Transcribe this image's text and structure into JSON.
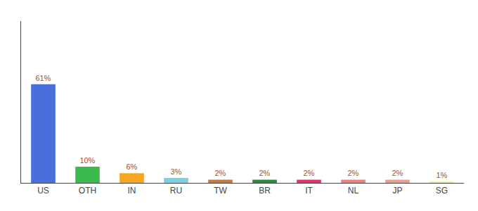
{
  "chart_data": {
    "type": "bar",
    "categories": [
      "US",
      "OTH",
      "IN",
      "RU",
      "TW",
      "BR",
      "IT",
      "NL",
      "JP",
      "SG"
    ],
    "values": [
      61,
      10,
      6,
      3,
      2,
      2,
      2,
      2,
      2,
      1
    ],
    "value_labels": [
      "61%",
      "10%",
      "6%",
      "3%",
      "2%",
      "2%",
      "2%",
      "2%",
      "2%",
      "1%"
    ],
    "colors": [
      "#4a6fdc",
      "#3dba4e",
      "#f5a623",
      "#7ecfe8",
      "#c87941",
      "#2e8b3e",
      "#e83070",
      "#f08080",
      "#e8a090",
      "#f0f0b0"
    ],
    "ylim": [
      0,
      100
    ],
    "grid": false,
    "data_labels": true,
    "tick_labels": "x"
  }
}
